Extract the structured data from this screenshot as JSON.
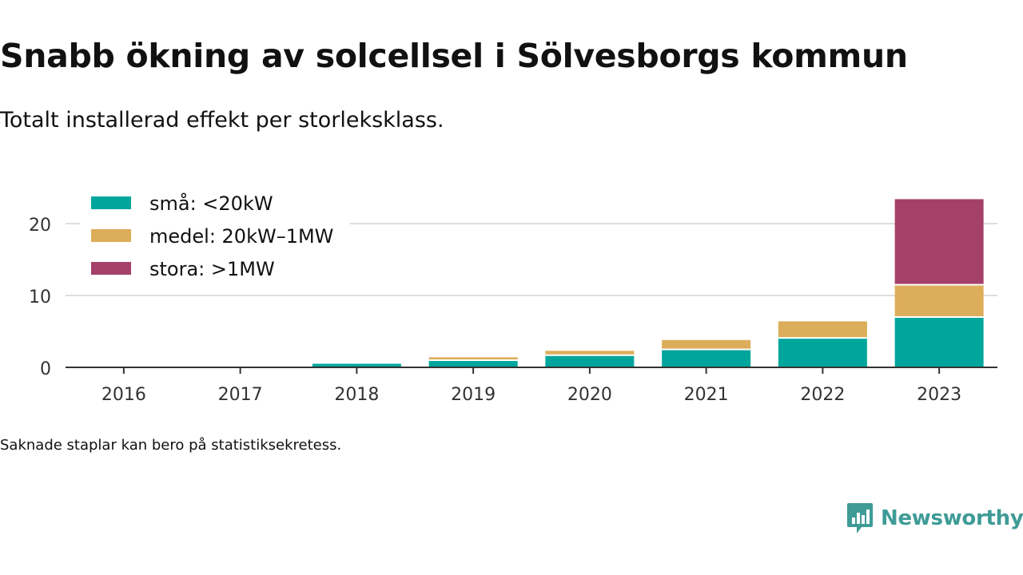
{
  "header": {
    "title": "Snabb ökning av solcellsel i Sölvesborgs kommun",
    "subtitle": "Totalt installerad effekt per storleksklass."
  },
  "footer": {
    "note": "Saknade staplar kan bero på statistiksekretess.",
    "brand": "Newsworthy",
    "brand_icon": "newsworthy-logo-icon"
  },
  "colors": {
    "sma": "#00a69c",
    "medel": "#dcad5a",
    "stora": "#a4406a",
    "gridline": "#dddddd",
    "axis": "#333333",
    "brand": "#3e9b96"
  },
  "chart_data": {
    "type": "bar",
    "stacked": true,
    "categories": [
      "2016",
      "2017",
      "2018",
      "2019",
      "2020",
      "2021",
      "2022",
      "2023"
    ],
    "series": [
      {
        "name": "små: <20kW",
        "color": "#00a69c",
        "values": [
          0,
          0,
          0.5,
          1.0,
          1.7,
          2.5,
          4.1,
          7.0
        ]
      },
      {
        "name": "medel: 20kW–1MW",
        "color": "#dcad5a",
        "values": [
          0,
          0,
          0,
          0.4,
          0.6,
          1.3,
          2.3,
          4.5
        ]
      },
      {
        "name": "stora: >1MW",
        "color": "#a4406a",
        "values": [
          0,
          0,
          0,
          0,
          0,
          0,
          0,
          11.9
        ]
      }
    ],
    "yticks": [
      0,
      10,
      20
    ],
    "ylim": [
      0,
      25
    ],
    "grid": true,
    "legend": "top-left",
    "title": "Snabb ökning av solcellsel i Sölvesborgs kommun",
    "subtitle": "Totalt installerad effekt per storleksklass.",
    "xlabel": "",
    "ylabel": ""
  }
}
